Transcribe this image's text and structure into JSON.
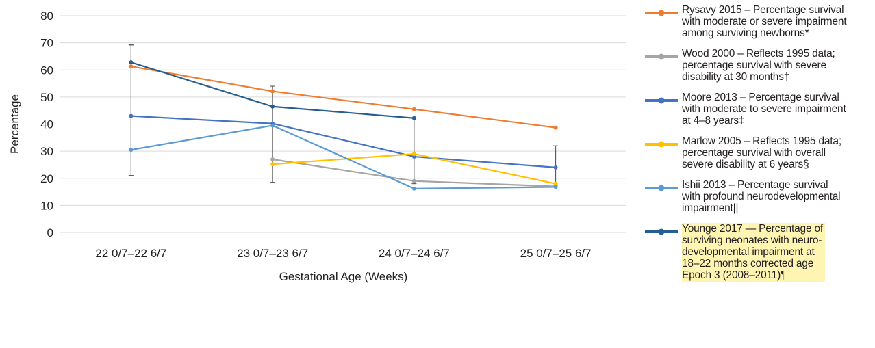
{
  "chart_data": {
    "type": "line",
    "xlabel": "Gestational Age (Weeks)",
    "ylabel": "Percentage",
    "categories": [
      "22 0/7–22 6/7",
      "23 0/7–23 6/7",
      "24 0/7–24 6/7",
      "25 0/7–25 6/7"
    ],
    "ylim": [
      0,
      80
    ],
    "yticks": [
      0,
      10,
      20,
      30,
      40,
      50,
      60,
      70,
      80
    ],
    "grid": true,
    "legend_position": "right",
    "series": [
      {
        "name": "Rysavy 2015 – Percentage survival\nwith moderate or severe impairment\namong surviving newborns*",
        "color": "#ed7d31",
        "values": [
          61.3,
          52.1,
          45.5,
          38.7
        ]
      },
      {
        "name": "Wood 2000 – Reflects 1995 data;\npercentage survival with severe\ndisability at 30 months†",
        "color": "#a5a5a5",
        "values": [
          null,
          27,
          19,
          17
        ]
      },
      {
        "name": "Moore 2013 – Percentage survival\nwith moderate to severe impairment\nat 4–8 years‡",
        "color": "#4472c4",
        "values": [
          43,
          40.2,
          28,
          24
        ]
      },
      {
        "name": "Marlow 2005 – Reflects 1995 data;\npercentage survival with overall\nsevere disability at 6 years§",
        "color": "#ffc000",
        "values": [
          null,
          25.2,
          29,
          18
        ]
      },
      {
        "name": "Ishii 2013 – Percentage survival\nwith profound neurodevelopmental\nimpairment||",
        "color": "#5b9bd5",
        "values": [
          30.5,
          39.5,
          16.2,
          16.8
        ],
        "error_bars": [
          [
            21,
            69.2
          ],
          null,
          null,
          [
            17.5,
            32
          ]
        ]
      },
      {
        "name": "Younge 2017 — Percentage of\nsurviving neonates with neuro-\ndevelopmental impairment at\n18–22 months corrected age\nEpoch 3 (2008–2011)¶",
        "color": "#255e91",
        "values": [
          62.8,
          46.5,
          42.2,
          null
        ],
        "highlight": true,
        "error_bars": [
          [
            21,
            69.2
          ],
          [
            18.5,
            54
          ],
          [
            18,
            42.2
          ],
          null
        ]
      }
    ]
  }
}
